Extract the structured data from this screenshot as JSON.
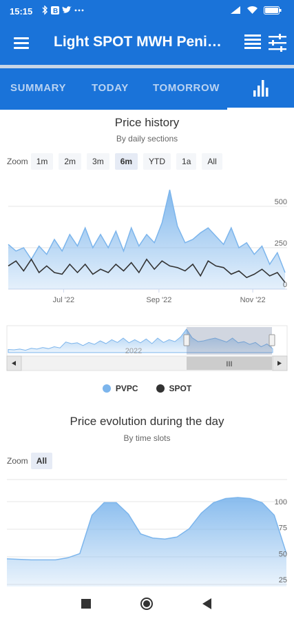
{
  "status_bar": {
    "time": "15:15",
    "notification_icons": [
      "bluetooth-icon",
      "b-icon",
      "twitter-icon",
      "more-icon"
    ],
    "right_icons": [
      "signal-icon",
      "wifi-icon",
      "battery-icon"
    ]
  },
  "app_bar": {
    "title": "Light SPOT MWH Peninsula",
    "menu_icon": "menu-icon",
    "actions": [
      "list-icon",
      "tune-icon"
    ]
  },
  "tabs": [
    {
      "label": "SUMMARY"
    },
    {
      "label": "TODAY"
    },
    {
      "label": "TOMORROW"
    },
    {
      "icon": "bar-chart-icon",
      "selected": true
    }
  ],
  "history_chart": {
    "title": "Price history",
    "subtitle": "By daily sections",
    "zoom_label": "Zoom",
    "zoom_buttons": [
      "1m",
      "2m",
      "3m",
      "6m",
      "YTD",
      "1a",
      "All"
    ],
    "zoom_selected": "6m",
    "navigator_year": "2022",
    "navigator_grip": "III"
  },
  "legend": [
    {
      "label": "PVPC",
      "color": "#7cb5ec"
    },
    {
      "label": "SPOT",
      "color": "#333333"
    }
  ],
  "daily_chart": {
    "title": "Price evolution during the day",
    "subtitle": "By time slots",
    "zoom_label": "Zoom",
    "zoom_buttons": [
      "All"
    ],
    "zoom_selected": "All"
  },
  "colors": {
    "primary": "#1a73d9",
    "pvpc": "#7cb5ec",
    "spot": "#333333"
  },
  "chart_data": [
    {
      "type": "area",
      "x": [
        "2022-05-26",
        "2022-05-31",
        "2022-06-05",
        "2022-06-10",
        "2022-06-15",
        "2022-06-20",
        "2022-06-25",
        "2022-06-30",
        "2022-07-05",
        "2022-07-10",
        "2022-07-15",
        "2022-07-20",
        "2022-07-25",
        "2022-07-30",
        "2022-08-04",
        "2022-08-09",
        "2022-08-14",
        "2022-08-19",
        "2022-08-24",
        "2022-08-29",
        "2022-09-03",
        "2022-09-08",
        "2022-09-13",
        "2022-09-18",
        "2022-09-23",
        "2022-09-28",
        "2022-10-03",
        "2022-10-08",
        "2022-10-13",
        "2022-10-18",
        "2022-10-23",
        "2022-10-28",
        "2022-11-02",
        "2022-11-07",
        "2022-11-12",
        "2022-11-17",
        "2022-11-22"
      ],
      "xticks": [
        "Jul '22",
        "Sep '22",
        "Nov '22"
      ],
      "yticks": [
        0,
        250,
        500
      ],
      "ylim": [
        0,
        600
      ],
      "series": [
        {
          "name": "PVPC",
          "values": [
            270,
            230,
            250,
            180,
            260,
            210,
            300,
            230,
            330,
            260,
            370,
            250,
            330,
            250,
            350,
            230,
            370,
            260,
            330,
            280,
            400,
            600,
            380,
            280,
            300,
            340,
            370,
            320,
            270,
            370,
            250,
            280,
            210,
            260,
            150,
            220,
            100
          ]
        },
        {
          "name": "SPOT",
          "values": [
            140,
            170,
            110,
            180,
            100,
            140,
            100,
            90,
            150,
            100,
            150,
            90,
            120,
            100,
            150,
            110,
            160,
            100,
            180,
            120,
            170,
            140,
            130,
            110,
            150,
            80,
            170,
            140,
            130,
            90,
            110,
            70,
            90,
            120,
            80,
            100,
            40
          ]
        }
      ]
    },
    {
      "type": "area",
      "yticks": [
        25,
        50,
        75,
        100
      ],
      "ylim": [
        25,
        108
      ],
      "x": [
        "0",
        "1",
        "2",
        "3",
        "4",
        "5",
        "6",
        "7",
        "8",
        "9",
        "10",
        "11",
        "12",
        "13",
        "14",
        "15",
        "16",
        "17",
        "18",
        "19",
        "20",
        "21",
        "22",
        "23"
      ],
      "series": [
        {
          "name": "PVPC",
          "values": [
            45,
            44.5,
            44,
            44,
            44,
            46,
            50,
            87,
            99,
            99,
            88,
            69,
            65,
            64,
            66,
            74,
            89,
            99,
            103,
            104,
            103,
            99,
            87,
            50
          ]
        }
      ]
    }
  ]
}
